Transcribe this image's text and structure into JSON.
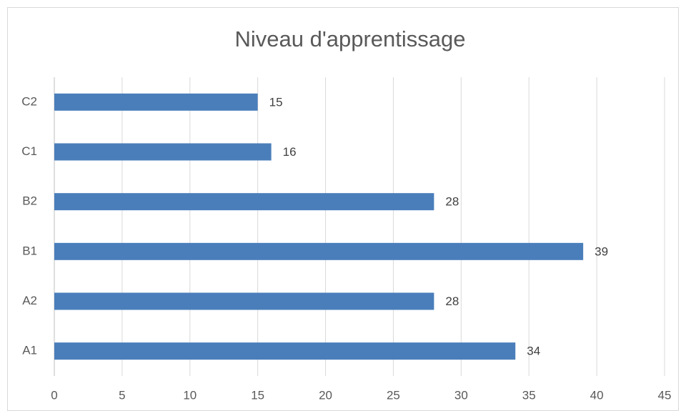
{
  "chart_data": {
    "type": "bar",
    "orientation": "horizontal",
    "title": "Niveau d'apprentissage",
    "categories": [
      "A1",
      "A2",
      "B1",
      "B2",
      "C1",
      "C2"
    ],
    "values": [
      34,
      28,
      39,
      28,
      16,
      15
    ],
    "color": "#4a7ebb",
    "xlim": [
      0,
      45
    ],
    "xticks": [
      0,
      5,
      10,
      15,
      20,
      25,
      30,
      35,
      40,
      45
    ],
    "grid": true
  }
}
